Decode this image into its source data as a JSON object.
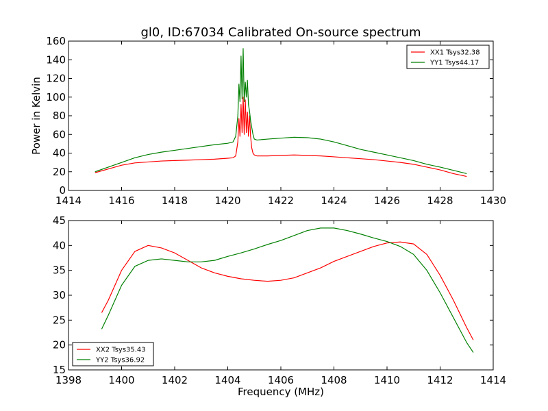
{
  "figure": {
    "title": "gl0, ID:67034 Calibrated On-source spectrum"
  },
  "chart_data": [
    {
      "type": "line",
      "title": "gl0, ID:67034 Calibrated On-source spectrum",
      "xlabel": "",
      "ylabel": "Power in Kelvin",
      "xlim": [
        1414,
        1430
      ],
      "ylim": [
        0,
        160
      ],
      "xticks": [
        "1414",
        "1416",
        "1418",
        "1420",
        "1422",
        "1424",
        "1426",
        "1428",
        "1430"
      ],
      "yticks": [
        "0",
        "20",
        "40",
        "60",
        "80",
        "100",
        "120",
        "140",
        "160"
      ],
      "grid": false,
      "legend_position": "top-right",
      "series": [
        {
          "name": "XX1 Tsys32.38",
          "color": "#ff0000",
          "x": [
            1415.0,
            1415.5,
            1416.0,
            1416.5,
            1417.0,
            1417.5,
            1418.0,
            1418.5,
            1419.0,
            1419.5,
            1420.0,
            1420.2,
            1420.3,
            1420.38,
            1420.42,
            1420.46,
            1420.5,
            1420.54,
            1420.58,
            1420.62,
            1420.66,
            1420.7,
            1420.74,
            1420.78,
            1420.82,
            1420.86,
            1420.9,
            1420.95,
            1421.0,
            1421.1,
            1421.5,
            1422.0,
            1422.5,
            1423.0,
            1423.5,
            1424.0,
            1424.5,
            1425.0,
            1425.5,
            1426.0,
            1426.5,
            1427.0,
            1427.5,
            1428.0,
            1428.5,
            1429.0
          ],
          "y": [
            19,
            23,
            27,
            29.5,
            30.5,
            31.5,
            32,
            32.5,
            33,
            33.5,
            34.5,
            35,
            37,
            52,
            77,
            58,
            92,
            62,
            100,
            60,
            97,
            62,
            84,
            58,
            80,
            58,
            46,
            40,
            38,
            37,
            37,
            37.5,
            38,
            37.5,
            37,
            36,
            35,
            34,
            33,
            31.5,
            30,
            28,
            25,
            22,
            18,
            15
          ]
        },
        {
          "name": "YY1 Tsys44.17",
          "color": "#008000",
          "x": [
            1415.0,
            1415.5,
            1416.0,
            1416.5,
            1417.0,
            1417.5,
            1418.0,
            1418.5,
            1419.0,
            1419.5,
            1420.0,
            1420.2,
            1420.3,
            1420.38,
            1420.42,
            1420.46,
            1420.5,
            1420.54,
            1420.58,
            1420.62,
            1420.66,
            1420.7,
            1420.74,
            1420.78,
            1420.82,
            1420.86,
            1420.9,
            1420.95,
            1421.0,
            1421.1,
            1421.5,
            1422.0,
            1422.5,
            1423.0,
            1423.5,
            1424.0,
            1424.5,
            1425.0,
            1425.5,
            1426.0,
            1426.5,
            1427.0,
            1427.5,
            1428.0,
            1428.5,
            1429.0
          ],
          "y": [
            20,
            25,
            30,
            35,
            38.5,
            41,
            43,
            45,
            47,
            49,
            50.5,
            52,
            58,
            80,
            114,
            95,
            144,
            98,
            152,
            95,
            116,
            100,
            118,
            92,
            85,
            75,
            68,
            60,
            55,
            54,
            55,
            56,
            57,
            56.5,
            55,
            52,
            48,
            44,
            41,
            38,
            35,
            32,
            28,
            25,
            21.5,
            18
          ]
        }
      ]
    },
    {
      "type": "line",
      "title": "",
      "xlabel": "Frequency (MHz)",
      "ylabel": "",
      "xlim": [
        1398,
        1414
      ],
      "ylim": [
        15,
        45
      ],
      "xticks": [
        "1398",
        "1400",
        "1402",
        "1404",
        "1406",
        "1408",
        "1410",
        "1412",
        "1414"
      ],
      "yticks": [
        "15",
        "20",
        "25",
        "30",
        "35",
        "40",
        "45"
      ],
      "grid": false,
      "legend_position": "bottom-left",
      "series": [
        {
          "name": "XX2 Tsys35.43",
          "color": "#ff0000",
          "x": [
            1399.25,
            1399.5,
            1400.0,
            1400.5,
            1401.0,
            1401.5,
            1402.0,
            1402.5,
            1403.0,
            1403.5,
            1404.0,
            1404.5,
            1405.0,
            1405.5,
            1406.0,
            1406.5,
            1407.0,
            1407.5,
            1408.0,
            1408.5,
            1409.0,
            1409.5,
            1410.0,
            1410.5,
            1411.0,
            1411.5,
            1412.0,
            1412.5,
            1413.0,
            1413.25
          ],
          "y": [
            26.5,
            29,
            35,
            38.8,
            40,
            39.5,
            38.5,
            37,
            35.5,
            34.5,
            33.8,
            33.3,
            33,
            32.8,
            33,
            33.5,
            34.5,
            35.5,
            36.8,
            37.8,
            38.8,
            39.8,
            40.5,
            40.7,
            40.3,
            38.2,
            34,
            29,
            23.5,
            21
          ]
        },
        {
          "name": "YY2 Tsys36.92",
          "color": "#008000",
          "x": [
            1399.25,
            1399.5,
            1400.0,
            1400.5,
            1401.0,
            1401.5,
            1402.0,
            1402.5,
            1403.0,
            1403.5,
            1404.0,
            1404.5,
            1405.0,
            1405.5,
            1406.0,
            1406.5,
            1407.0,
            1407.5,
            1408.0,
            1408.5,
            1409.0,
            1409.5,
            1410.0,
            1410.5,
            1411.0,
            1411.5,
            1412.0,
            1412.5,
            1413.0,
            1413.25
          ],
          "y": [
            23.2,
            26,
            32,
            35.8,
            37,
            37.3,
            37,
            36.7,
            36.7,
            37,
            37.8,
            38.5,
            39.3,
            40.2,
            41,
            42,
            43,
            43.5,
            43.5,
            43,
            42.3,
            41.5,
            40.8,
            39.8,
            38.2,
            35,
            30.5,
            25.5,
            20.5,
            18.5
          ]
        }
      ]
    }
  ]
}
